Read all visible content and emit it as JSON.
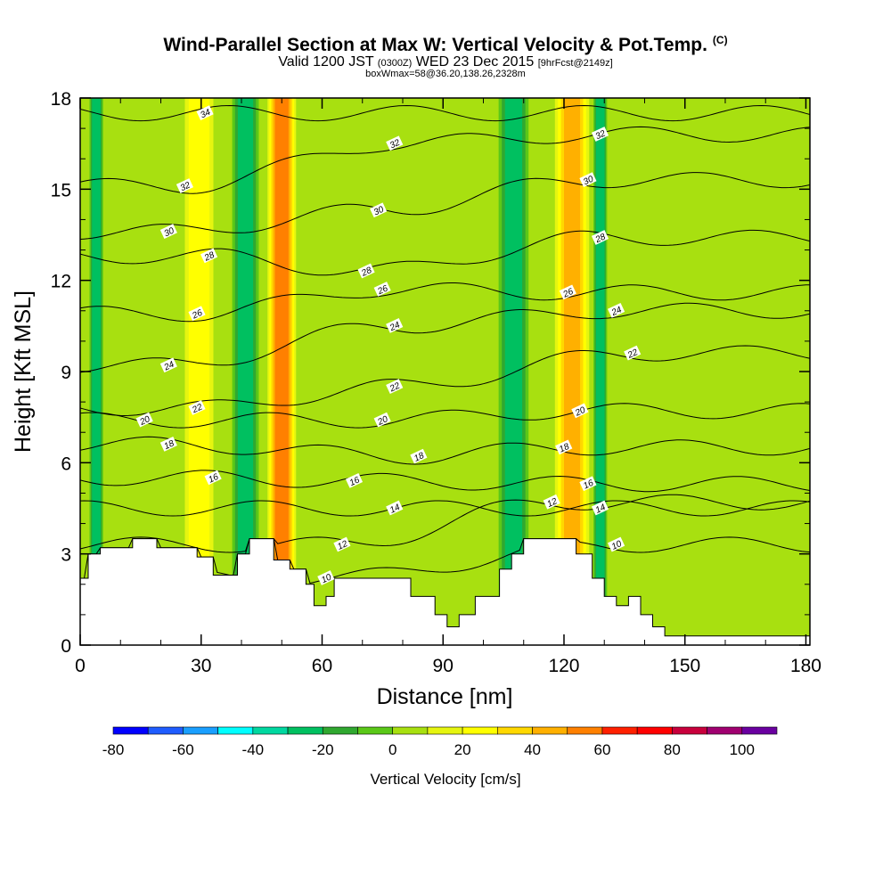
{
  "header": {
    "title": "Wind-Parallel Section at Max W: Vertical Velocity & Pot.Temp.",
    "copyright": "(C)",
    "valid_prefix": "Valid 1200 JST",
    "valid_utc": "(0300Z)",
    "valid_date": "WED 23 Dec 2015",
    "forecast": "[9hrFcst@2149z]",
    "box_info": "boxWmax=58@36.20,138.26,2328m"
  },
  "chart_data": {
    "type": "heatmap",
    "xlabel": "Distance [nm]",
    "ylabel": "Height [Kft MSL]",
    "xlim": [
      0,
      181
    ],
    "ylim": [
      0,
      18
    ],
    "x_ticks": [
      0,
      30,
      60,
      90,
      120,
      150,
      180
    ],
    "y_ticks": [
      0,
      3,
      6,
      9,
      12,
      15,
      18
    ],
    "colorbar": {
      "title": "Vertical Velocity [cm/s]",
      "tick_labels": [
        -80,
        -60,
        -40,
        -20,
        0,
        20,
        40,
        60,
        80,
        100
      ],
      "range": [
        -80,
        110
      ],
      "colors": [
        "#0000ff",
        "#1f5cff",
        "#1a9fff",
        "#00ffff",
        "#00d8a0",
        "#00c060",
        "#30a830",
        "#5ac818",
        "#a8e010",
        "#e6f510",
        "#ffff00",
        "#ffd800",
        "#ffb000",
        "#ff8000",
        "#ff2000",
        "#ff0000",
        "#c8003c",
        "#a00070",
        "#6a00a0"
      ]
    },
    "upwelling_bands": [
      {
        "x": [
          25,
          34
        ],
        "peak": 30
      },
      {
        "x": [
          46,
          54
        ],
        "peak": 60
      },
      {
        "x": [
          117,
          127
        ],
        "peak": 45
      }
    ],
    "downwelling_bands": [
      {
        "x": [
          2,
          6
        ],
        "peak": -30
      },
      {
        "x": [
          37,
          45
        ],
        "peak": -25
      },
      {
        "x": [
          103,
          112
        ],
        "peak": -25
      },
      {
        "x": [
          127,
          131
        ],
        "peak": -30
      }
    ],
    "theta_contours": [
      {
        "value": 10,
        "label_at": [
          [
            61,
            2.2
          ],
          [
            133,
            3.3
          ]
        ]
      },
      {
        "value": 12,
        "label_at": [
          [
            65,
            3.3
          ],
          [
            117,
            4.7
          ]
        ]
      },
      {
        "value": 14,
        "label_at": [
          [
            78,
            4.5
          ],
          [
            129,
            4.5
          ]
        ]
      },
      {
        "value": 16,
        "label_at": [
          [
            33,
            5.5
          ],
          [
            68,
            5.4
          ],
          [
            126,
            5.3
          ]
        ]
      },
      {
        "value": 18,
        "label_at": [
          [
            22,
            6.6
          ],
          [
            84,
            6.2
          ],
          [
            120,
            6.5
          ]
        ]
      },
      {
        "value": 20,
        "label_at": [
          [
            16,
            7.4
          ],
          [
            75,
            7.4
          ],
          [
            124,
            7.7
          ]
        ]
      },
      {
        "value": 22,
        "label_at": [
          [
            29,
            7.8
          ],
          [
            78,
            8.5
          ],
          [
            137,
            9.6
          ]
        ]
      },
      {
        "value": 24,
        "label_at": [
          [
            22,
            9.2
          ],
          [
            78,
            10.5
          ],
          [
            133,
            11.0
          ]
        ]
      },
      {
        "value": 26,
        "label_at": [
          [
            29,
            10.9
          ],
          [
            75,
            11.7
          ],
          [
            121,
            11.6
          ]
        ]
      },
      {
        "value": 28,
        "label_at": [
          [
            32,
            12.8
          ],
          [
            71,
            12.3
          ],
          [
            129,
            13.4
          ]
        ]
      },
      {
        "value": 30,
        "label_at": [
          [
            22,
            13.6
          ],
          [
            74,
            14.3
          ],
          [
            126,
            15.3
          ]
        ]
      },
      {
        "value": 32,
        "label_at": [
          [
            26,
            15.1
          ],
          [
            78,
            16.5
          ],
          [
            129,
            16.8
          ]
        ]
      },
      {
        "value": 34,
        "label_at": [
          [
            31,
            17.5
          ]
        ]
      }
    ],
    "terrain": [
      [
        0,
        2.2
      ],
      [
        2,
        2.2
      ],
      [
        2,
        3
      ],
      [
        5,
        3
      ],
      [
        5,
        3.2
      ],
      [
        13,
        3.2
      ],
      [
        13,
        3.5
      ],
      [
        19,
        3.5
      ],
      [
        19,
        3.2
      ],
      [
        29,
        3.2
      ],
      [
        29,
        2.9
      ],
      [
        33,
        2.9
      ],
      [
        33,
        2.3
      ],
      [
        39,
        2.3
      ],
      [
        39,
        3.0
      ],
      [
        42,
        3.0
      ],
      [
        42,
        3.5
      ],
      [
        48,
        3.5
      ],
      [
        48,
        2.8
      ],
      [
        52,
        2.8
      ],
      [
        52,
        2.5
      ],
      [
        56,
        2.5
      ],
      [
        56,
        2.0
      ],
      [
        58,
        2.0
      ],
      [
        58,
        1.3
      ],
      [
        61,
        1.3
      ],
      [
        61,
        1.6
      ],
      [
        63,
        1.6
      ],
      [
        63,
        2.2
      ],
      [
        82,
        2.2
      ],
      [
        82,
        1.6
      ],
      [
        88,
        1.6
      ],
      [
        88,
        1.0
      ],
      [
        91,
        1.0
      ],
      [
        91,
        0.6
      ],
      [
        94,
        0.6
      ],
      [
        94,
        1.0
      ],
      [
        98,
        1.0
      ],
      [
        98,
        1.6
      ],
      [
        104,
        1.6
      ],
      [
        104,
        2.5
      ],
      [
        107,
        2.5
      ],
      [
        107,
        3.0
      ],
      [
        110,
        3.0
      ],
      [
        110,
        3.5
      ],
      [
        123,
        3.5
      ],
      [
        123,
        3.0
      ],
      [
        127,
        3.0
      ],
      [
        127,
        2.2
      ],
      [
        130,
        2.2
      ],
      [
        130,
        1.6
      ],
      [
        133,
        1.6
      ],
      [
        133,
        1.3
      ],
      [
        136,
        1.3
      ],
      [
        136,
        1.6
      ],
      [
        139,
        1.6
      ],
      [
        139,
        1.0
      ],
      [
        142,
        1.0
      ],
      [
        142,
        0.6
      ],
      [
        145,
        0.6
      ],
      [
        145,
        0.3
      ],
      [
        181,
        0.3
      ],
      [
        181,
        0
      ]
    ]
  }
}
